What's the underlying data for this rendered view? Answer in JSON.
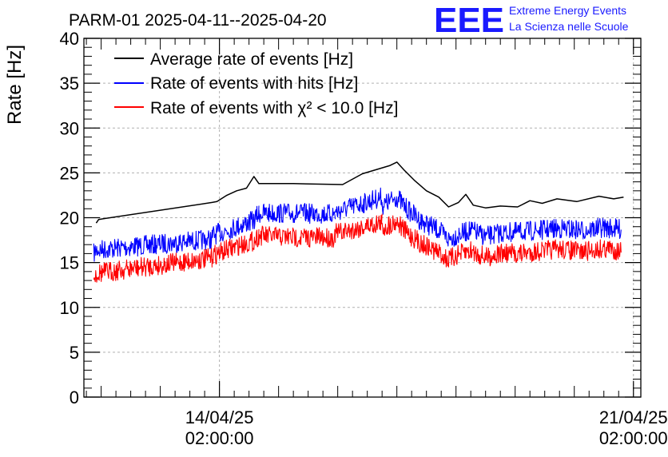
{
  "header": {
    "title": "PARM-01 2025-04-11--2025-04-20",
    "logo_text": "EEE",
    "logo_line1": "Extreme Energy Events",
    "logo_line2": "La Scienza nelle Scuole"
  },
  "colors": {
    "average": "#000000",
    "hits": "#0000ff",
    "chi2": "#ff0000",
    "logo": "#1a1aff",
    "grid": "#b0b0b0"
  },
  "chart_data": {
    "type": "line",
    "title": "PARM-01 2025-04-11--2025-04-20",
    "ylabel": "Rate [Hz]",
    "xlabel": "",
    "ylim": [
      0,
      40
    ],
    "xlim": [
      "2025-04-11T19:00",
      "2025-04-21T05:00"
    ],
    "yticks": [
      0,
      5,
      10,
      15,
      20,
      25,
      30,
      35,
      40
    ],
    "xticks": [
      {
        "t": "2025-04-14T02:00",
        "date": "14/04/25",
        "time": "02:00:00"
      },
      {
        "t": "2025-04-21T02:00",
        "date": "21/04/25",
        "time": "02:00:00"
      }
    ],
    "grid": true,
    "legend_position": "top-left",
    "series": [
      {
        "name": "Average rate of events [Hz]",
        "color": "#000000",
        "noise": 0,
        "segments": [
          [
            [
              "2025-04-12T00:00",
              19.4
            ],
            [
              "2025-04-12T01:00",
              19.8
            ],
            [
              "2025-04-13T23:00",
              21.7
            ],
            [
              "2025-04-14T01:00",
              21.8
            ],
            [
              "2025-04-14T05:00",
              22.5
            ],
            [
              "2025-04-14T09:00",
              23.0
            ],
            [
              "2025-04-14T13:00",
              23.3
            ],
            [
              "2025-04-14T16:00",
              24.6
            ],
            [
              "2025-04-14T18:00",
              23.8
            ],
            [
              "2025-04-15T08:00",
              23.8
            ],
            [
              "2025-04-16T04:00",
              23.7
            ],
            [
              "2025-04-16T12:00",
              24.9
            ],
            [
              "2025-04-16T23:00",
              25.8
            ],
            [
              "2025-04-17T02:00",
              26.2
            ],
            [
              "2025-04-17T05:00",
              25.3
            ],
            [
              "2025-04-17T09:00",
              24.2
            ],
            [
              "2025-04-17T14:00",
              23.0
            ],
            [
              "2025-04-17T19:00",
              22.3
            ],
            [
              "2025-04-17T23:00",
              21.2
            ],
            [
              "2025-04-18T03:00",
              21.7
            ],
            [
              "2025-04-18T06:00",
              22.6
            ],
            [
              "2025-04-18T09:00",
              21.4
            ],
            [
              "2025-04-18T14:00",
              21.1
            ],
            [
              "2025-04-18T20:00",
              21.3
            ],
            [
              "2025-04-19T03:00",
              21.2
            ],
            [
              "2025-04-19T08:00",
              21.9
            ],
            [
              "2025-04-19T13:00",
              21.6
            ],
            [
              "2025-04-19T19:00",
              22.1
            ],
            [
              "2025-04-20T03:00",
              21.8
            ],
            [
              "2025-04-20T12:00",
              22.4
            ],
            [
              "2025-04-20T18:00",
              22.1
            ],
            [
              "2025-04-20T22:00",
              22.3
            ]
          ]
        ]
      },
      {
        "name": "Rate of events with hits [Hz]",
        "color": "#0000ff",
        "noise": 1.6,
        "segments": [
          [
            [
              "2025-04-11T23:00",
              16.0
            ],
            [
              "2025-04-12T00:00",
              16.4
            ],
            [
              "2025-04-13T23:00",
              17.6
            ]
          ],
          [
            [
              "2025-04-13T23:00",
              18.0
            ],
            [
              "2025-04-14T05:00",
              18.6
            ],
            [
              "2025-04-14T10:00",
              19.1
            ],
            [
              "2025-04-14T16:00",
              19.7
            ],
            [
              "2025-04-14T18:00",
              20.5
            ]
          ],
          [
            [
              "2025-04-14T18:00",
              20.5
            ],
            [
              "2025-04-15T09:00",
              20.5
            ],
            [
              "2025-04-16T01:00",
              20.4
            ]
          ],
          [
            [
              "2025-04-16T01:00",
              20.6
            ],
            [
              "2025-04-16T20:00",
              22.3
            ]
          ],
          [
            [
              "2025-04-16T20:00",
              21.3
            ],
            [
              "2025-04-17T02:00",
              22.3
            ],
            [
              "2025-04-17T06:00",
              21.0
            ],
            [
              "2025-04-17T12:00",
              19.6
            ],
            [
              "2025-04-17T19:00",
              18.6
            ],
            [
              "2025-04-17T23:00",
              17.6
            ],
            [
              "2025-04-18T03:00",
              18.1
            ],
            [
              "2025-04-18T08:00",
              18.6
            ],
            [
              "2025-04-18T14:00",
              17.9
            ],
            [
              "2025-04-18T20:00",
              18.3
            ],
            [
              "2025-04-19T04:00",
              18.4
            ],
            [
              "2025-04-19T12:00",
              18.6
            ],
            [
              "2025-04-19T20:00",
              18.8
            ],
            [
              "2025-04-20T06:00",
              18.6
            ],
            [
              "2025-04-20T14:00",
              18.9
            ],
            [
              "2025-04-20T21:00",
              18.7
            ]
          ]
        ]
      },
      {
        "name": "Rate of events with χ² < 10.0 [Hz]",
        "color": "#ff0000",
        "noise": 1.6,
        "segments": [
          [
            [
              "2025-04-11T23:00",
              13.3
            ],
            [
              "2025-04-12T00:00",
              13.8
            ],
            [
              "2025-04-13T23:00",
              15.5
            ]
          ],
          [
            [
              "2025-04-13T23:00",
              15.8
            ],
            [
              "2025-04-14T05:00",
              16.4
            ],
            [
              "2025-04-14T10:00",
              16.9
            ],
            [
              "2025-04-14T16:00",
              17.4
            ],
            [
              "2025-04-14T18:00",
              18.0
            ]
          ],
          [
            [
              "2025-04-14T18:00",
              18.0
            ],
            [
              "2025-04-15T09:00",
              17.8
            ],
            [
              "2025-04-16T01:00",
              17.8
            ]
          ],
          [
            [
              "2025-04-16T01:00",
              18.2
            ],
            [
              "2025-04-16T20:00",
              19.5
            ]
          ],
          [
            [
              "2025-04-16T20:00",
              18.8
            ],
            [
              "2025-04-17T02:00",
              19.6
            ],
            [
              "2025-04-17T06:00",
              18.3
            ],
            [
              "2025-04-17T12:00",
              17.1
            ],
            [
              "2025-04-17T19:00",
              16.1
            ],
            [
              "2025-04-17T23:00",
              15.3
            ],
            [
              "2025-04-18T03:00",
              15.9
            ],
            [
              "2025-04-18T08:00",
              16.3
            ],
            [
              "2025-04-18T14:00",
              15.6
            ],
            [
              "2025-04-18T20:00",
              16.0
            ],
            [
              "2025-04-19T04:00",
              16.0
            ],
            [
              "2025-04-19T12:00",
              16.3
            ],
            [
              "2025-04-19T20:00",
              16.5
            ],
            [
              "2025-04-20T06:00",
              16.2
            ],
            [
              "2025-04-20T14:00",
              16.6
            ],
            [
              "2025-04-20T21:00",
              16.3
            ]
          ]
        ]
      }
    ]
  }
}
